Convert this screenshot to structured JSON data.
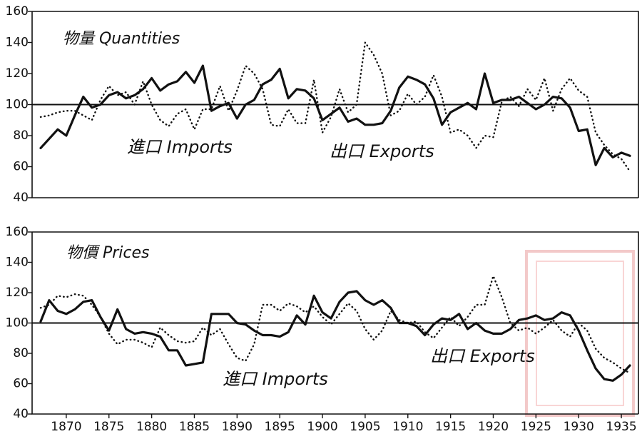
{
  "chart_data": [
    {
      "type": "line",
      "title": "物量 Quantities",
      "x": [
        1867,
        1868,
        1869,
        1870,
        1871,
        1872,
        1873,
        1874,
        1875,
        1876,
        1877,
        1878,
        1879,
        1880,
        1881,
        1882,
        1883,
        1884,
        1885,
        1886,
        1887,
        1888,
        1889,
        1890,
        1891,
        1892,
        1893,
        1894,
        1895,
        1896,
        1897,
        1898,
        1899,
        1900,
        1901,
        1902,
        1903,
        1904,
        1905,
        1906,
        1907,
        1908,
        1909,
        1910,
        1911,
        1912,
        1913,
        1914,
        1915,
        1916,
        1917,
        1918,
        1919,
        1920,
        1921,
        1922,
        1923,
        1924,
        1925,
        1926,
        1927,
        1928,
        1929,
        1930,
        1931,
        1932,
        1933,
        1934,
        1935,
        1936
      ],
      "series": [
        {
          "name": "進口 Imports",
          "color": "#111111",
          "style": "solid",
          "values": [
            72,
            78,
            84,
            80,
            93,
            105,
            98,
            100,
            106,
            108,
            104,
            106,
            110,
            117,
            109,
            113,
            115,
            121,
            114,
            125,
            96,
            99,
            101,
            91,
            100,
            103,
            113,
            116,
            123,
            104,
            110,
            109,
            104,
            90,
            94,
            98,
            89,
            91,
            87,
            87,
            88,
            96,
            111,
            118,
            116,
            113,
            104,
            87,
            95,
            98,
            101,
            97,
            120,
            101,
            103,
            103,
            105,
            101,
            97,
            100,
            105,
            104,
            98,
            83,
            84,
            61,
            72,
            66,
            69,
            67
          ]
        },
        {
          "name": "出口 Exports",
          "color": "#111111",
          "style": "dotted",
          "values": [
            92,
            93,
            95,
            96,
            96,
            93,
            90,
            103,
            112,
            106,
            108,
            100,
            115,
            100,
            90,
            86,
            94,
            97,
            84,
            97,
            97,
            112,
            96,
            109,
            125,
            120,
            110,
            87,
            86,
            97,
            88,
            88,
            116,
            82,
            92,
            110,
            95,
            100,
            140,
            132,
            120,
            93,
            96,
            107,
            100,
            105,
            119,
            105,
            82,
            84,
            80,
            72,
            80,
            79,
            102,
            105,
            99,
            110,
            103,
            117,
            96,
            110,
            117,
            109,
            105,
            82,
            74,
            68,
            65,
            57
          ]
        }
      ],
      "xlim": [
        1866,
        1937
      ],
      "ylim": [
        40,
        160
      ],
      "yticks": [
        40,
        60,
        80,
        100,
        120,
        140,
        160
      ],
      "reference_line": 100
    },
    {
      "type": "line",
      "title": "物價 Prices",
      "x": [
        1867,
        1868,
        1869,
        1870,
        1871,
        1872,
        1873,
        1874,
        1875,
        1876,
        1877,
        1878,
        1879,
        1880,
        1881,
        1882,
        1883,
        1884,
        1885,
        1886,
        1887,
        1888,
        1889,
        1890,
        1891,
        1892,
        1893,
        1894,
        1895,
        1896,
        1897,
        1898,
        1899,
        1900,
        1901,
        1902,
        1903,
        1904,
        1905,
        1906,
        1907,
        1908,
        1909,
        1910,
        1911,
        1912,
        1913,
        1914,
        1915,
        1916,
        1917,
        1918,
        1919,
        1920,
        1921,
        1922,
        1923,
        1924,
        1925,
        1926,
        1927,
        1928,
        1929,
        1930,
        1931,
        1932,
        1933,
        1934,
        1935,
        1936
      ],
      "series": [
        {
          "name": "進口 Imports",
          "color": "#111111",
          "style": "solid",
          "values": [
            101,
            115,
            108,
            106,
            109,
            114,
            115,
            104,
            95,
            109,
            96,
            93,
            94,
            93,
            91,
            82,
            82,
            72,
            73,
            74,
            106,
            106,
            106,
            100,
            99,
            95,
            92,
            92,
            91,
            94,
            105,
            99,
            118,
            107,
            103,
            114,
            120,
            121,
            115,
            112,
            115,
            110,
            100,
            100,
            98,
            92,
            99,
            103,
            102,
            106,
            96,
            100,
            95,
            93,
            93,
            96,
            102,
            103,
            105,
            102,
            103,
            107,
            105,
            95,
            82,
            70,
            63,
            62,
            66,
            72
          ]
        },
        {
          "name": "出口 Exports",
          "color": "#111111",
          "style": "dotted",
          "values": [
            110,
            112,
            118,
            117,
            119,
            118,
            112,
            104,
            93,
            86,
            89,
            89,
            87,
            84,
            97,
            92,
            88,
            87,
            88,
            97,
            92,
            96,
            86,
            77,
            75,
            86,
            112,
            112,
            108,
            113,
            111,
            107,
            111,
            104,
            99,
            106,
            113,
            108,
            96,
            89,
            95,
            108,
            102,
            100,
            101,
            94,
            90,
            97,
            104,
            98,
            104,
            112,
            112,
            131,
            117,
            100,
            95,
            97,
            93,
            97,
            102,
            95,
            91,
            100,
            95,
            83,
            77,
            74,
            70,
            67
          ]
        }
      ],
      "xlim": [
        1866,
        1937
      ],
      "ylim": [
        40,
        160
      ],
      "yticks": [
        40,
        60,
        80,
        100,
        120,
        140,
        160
      ],
      "reference_line": 100,
      "xticks": [
        1870,
        1875,
        1880,
        1885,
        1890,
        1895,
        1900,
        1905,
        1910,
        1915,
        1920,
        1925,
        1930,
        1935
      ]
    }
  ]
}
